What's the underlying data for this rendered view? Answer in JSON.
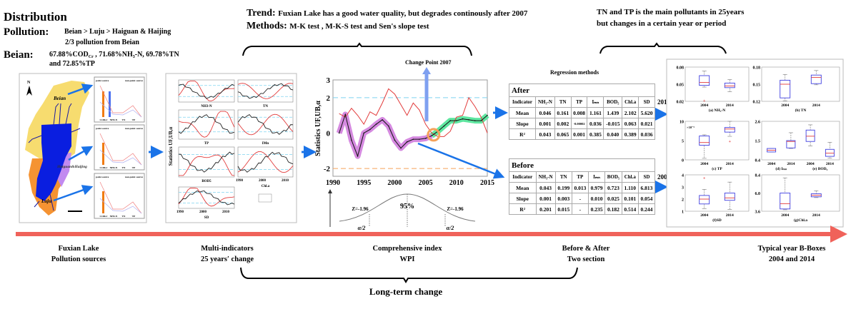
{
  "top_left": {
    "heading": "Distribution",
    "pollution_label": "Pollution:",
    "pollution_text": "Beian > Luju > Haiguan & Haijing",
    "pollution_text2": "2/3 pollution from Beian",
    "beian_label": "Beian:",
    "beian_parts": [
      "67.88%COD",
      "Cr",
      " , 71.68%NH",
      "3",
      "-N, 69.78%TN"
    ],
    "beian_text2": "and 72.85%TP"
  },
  "top_middle": {
    "trend_label": "Trend:",
    "trend_text": "Fuxian Lake has a good water quality, but degrades continously after 2007",
    "methods_label": "Methods:",
    "methods_text": "M-K test , M-K-S test and Sen's slope test"
  },
  "top_right": {
    "line1": "TN and TP is the main pollutants in 25years",
    "line2": "but changes in a certain year or period"
  },
  "map": {
    "labels": {
      "beian": "Beian",
      "haiguan": "Haiguan&Haijing",
      "luju": "Luju",
      "north": "N"
    },
    "colors": {
      "beian": "#f7dc6f",
      "lake": "#0a1ee0",
      "luju": "#f59332",
      "haiguan": "#c28af0"
    },
    "bar_chart_labels": {
      "left": "point source",
      "right": "non-point source",
      "x": [
        "CODcr",
        "NH3-N",
        "TN",
        "TP"
      ]
    }
  },
  "multi_indicators": {
    "ylabel": "Statistics UF,UB,α",
    "panels": [
      "NH3-N",
      "TN",
      "TP",
      "IMn",
      "BOD5",
      "Chl.a",
      "SD"
    ],
    "xticks": [
      "1990",
      "2000",
      "2010"
    ]
  },
  "wpi_chart": {
    "change_point_label": "Change Point 2007",
    "normal": {
      "z_left": "Z=-1.96",
      "z_right": "Z=-1.96",
      "center": "95%",
      "alpha_left": "α/2",
      "alpha_right": "α/2"
    }
  },
  "chart_data": {
    "type": "line",
    "ylabel": "Statistics UF,UB,α",
    "xlim": [
      1990,
      2015
    ],
    "ylim": [
      -2.44,
      3
    ],
    "xticks": [
      1990,
      1995,
      2000,
      2005,
      2010,
      2015
    ],
    "yticks": [
      -2,
      0,
      2,
      3
    ],
    "x": [
      1991,
      1992,
      1993,
      1994,
      1995,
      1996,
      1997,
      1998,
      1999,
      2000,
      2001,
      2002,
      2003,
      2004,
      2005,
      2006,
      2007,
      2008,
      2009,
      2010,
      2011,
      2012,
      2013,
      2014,
      2015
    ],
    "series": [
      {
        "color": "#e23b3b",
        "values": [
          1.1,
          0.9,
          1.4,
          1.0,
          0.5,
          1.2,
          1.0,
          1.7,
          2.5,
          2.2,
          1.6,
          1.0,
          1.7,
          1.3,
          0.5,
          0.0,
          -0.2,
          -0.2,
          0.1,
          0.9,
          1.0,
          2.0,
          1.5,
          0.9,
          0.0
        ]
      },
      {
        "color": "#111111",
        "values": [
          0.0,
          1.05,
          -0.4,
          -1.3,
          0.0,
          0.2,
          0.5,
          0.75,
          0.4,
          -0.4,
          -0.85,
          -0.5,
          -0.35,
          -0.35,
          -0.3,
          -0.15,
          0.1,
          0.4,
          0.7,
          0.7,
          0.8,
          0.75,
          0.7,
          0.7,
          1.0
        ]
      }
    ],
    "reference_lines": [
      {
        "y": 2,
        "color": "#7fd3f0"
      },
      {
        "y": -2,
        "color": "#f5a25a"
      }
    ],
    "highlight_before": {
      "from": 1991,
      "to": 2006,
      "color": "#d58ae0"
    },
    "highlight_after": {
      "from": 2006,
      "to": 2015,
      "color": "#5fe6a0"
    },
    "change_point": 2006.3
  },
  "regression": {
    "title": "Regression methods",
    "columns": [
      "Indicator",
      "NH₃-N",
      "TN",
      "TP",
      "Iₘₙ",
      "BOD₅",
      "Chl.a",
      "SD"
    ],
    "after": {
      "label": "After",
      "year": "2014",
      "rows": [
        [
          "Mean",
          "0.046",
          "0.161",
          "0.008",
          "1.161",
          "1.439",
          "2.102",
          "5.620"
        ],
        [
          "Slope",
          "0.001",
          "0.002",
          "-0.00002",
          "0.036",
          "-0.015",
          "0.063",
          "0.021"
        ],
        [
          "R²",
          "0.043",
          "0.065",
          "0.001",
          "0.385",
          "0.040",
          "0.389",
          "0.036"
        ]
      ]
    },
    "before": {
      "label": "Before",
      "year": "2004",
      "rows": [
        [
          "Mean",
          "0.043",
          "0.199",
          "0.013",
          "0.979",
          "0.723",
          "1.110",
          "6.813"
        ],
        [
          "Slope",
          "0.001",
          "0.003",
          "-",
          "0.010",
          "0.025",
          "0.101",
          "0.054"
        ],
        [
          "R²",
          "0.201",
          "0.015",
          "-",
          "0.235",
          "0.182",
          "0.514",
          "0.244"
        ]
      ]
    }
  },
  "boxplots": [
    {
      "caption": "(a) NH₃-N",
      "ylim": [
        0.02,
        0.08
      ],
      "yticks": [
        "0.02",
        "0.05",
        "0.08"
      ],
      "boxes": [
        {
          "label": "2004",
          "stats": [
            0.045,
            0.048,
            0.053,
            0.065,
            0.073
          ],
          "outliers": [
            0.021
          ]
        },
        {
          "label": "2014",
          "stats": [
            0.037,
            0.044,
            0.047,
            0.052,
            0.058
          ],
          "outliers": []
        }
      ]
    },
    {
      "caption": "(b) TN",
      "ylim": [
        0.12,
        0.18
      ],
      "yticks": [
        "0.12",
        "0.15",
        "0.18"
      ],
      "boxes": [
        {
          "label": "2004",
          "stats": [
            0.121,
            0.126,
            0.15,
            0.157,
            0.167
          ],
          "outliers": []
        },
        {
          "label": "2014",
          "stats": [
            0.149,
            0.151,
            0.162,
            0.166,
            0.174
          ],
          "outliers": []
        }
      ]
    },
    {
      "caption": "(c) TP",
      "ylim": [
        0,
        10
      ],
      "yticks": [
        "0",
        "5",
        "10"
      ],
      "multiplier": "×10⁻³",
      "boxes": [
        {
          "label": "2004",
          "stats": [
            0.4,
            3.8,
            4.5,
            6.2,
            6.5
          ],
          "outliers": []
        },
        {
          "label": "2014",
          "stats": [
            6.1,
            7.2,
            8.0,
            8.4,
            10
          ],
          "outliers": [
            4.8
          ]
        }
      ]
    },
    {
      "caption": "(d) Iₘₙ",
      "caption2": "(e) BOD₅",
      "ylim": [
        0.4,
        2.6
      ],
      "yticks": [
        "0.4",
        "1.5",
        "2.6"
      ],
      "boxes": [
        {
          "label": "2004",
          "stats": [
            0.85,
            0.85,
            0.95,
            1.05,
            1.05
          ],
          "outliers": []
        },
        {
          "label": "2014",
          "stats": [
            1.05,
            1.08,
            1.45,
            1.5,
            1.95
          ],
          "outliers": []
        },
        {
          "label": "2004",
          "stats": [
            1.2,
            1.45,
            1.75,
            2.1,
            2.4
          ],
          "outliers": []
        },
        {
          "label": "2014",
          "stats": [
            0.5,
            0.6,
            0.78,
            1.0,
            1.4
          ],
          "outliers": []
        }
      ]
    },
    {
      "caption": "(f)SD",
      "ylim": [
        1,
        4
      ],
      "yticks": [
        "1",
        "2",
        "3",
        "4"
      ],
      "boxes": [
        {
          "label": "2004",
          "stats": [
            1.2,
            1.6,
            2.0,
            2.3,
            2.8
          ],
          "outliers": [
            3.75
          ]
        },
        {
          "label": "2014",
          "stats": [
            1.15,
            1.9,
            2.1,
            2.5,
            3.4
          ],
          "outliers": []
        }
      ]
    },
    {
      "caption": "(g)Chl.a",
      "ylim": [
        3.6,
        8.4
      ],
      "yticks": [
        "3.6",
        "6.0",
        "8.4"
      ],
      "boxes": [
        {
          "label": "2004",
          "stats": [
            3.8,
            3.9,
            4.6,
            6.0,
            8.0
          ],
          "outliers": []
        },
        {
          "label": "2014",
          "stats": [
            5.4,
            5.5,
            5.7,
            5.9,
            6.3
          ],
          "outliers": []
        }
      ]
    }
  ],
  "timeline": {
    "color": "#f0625a",
    "steps": [
      {
        "line1": "Fuxian Lake",
        "line2": "Pollution sources"
      },
      {
        "line1": "Multi-indicators",
        "line2": "25 years′ change"
      },
      {
        "line1": "Comprehensive index",
        "line2": "WPI"
      },
      {
        "line1": "Before & After",
        "line2": "Two section"
      },
      {
        "line1": "Typical year B-Boxes",
        "line2": "2004 and 2014"
      }
    ],
    "bracket_label": "Long-term change"
  }
}
